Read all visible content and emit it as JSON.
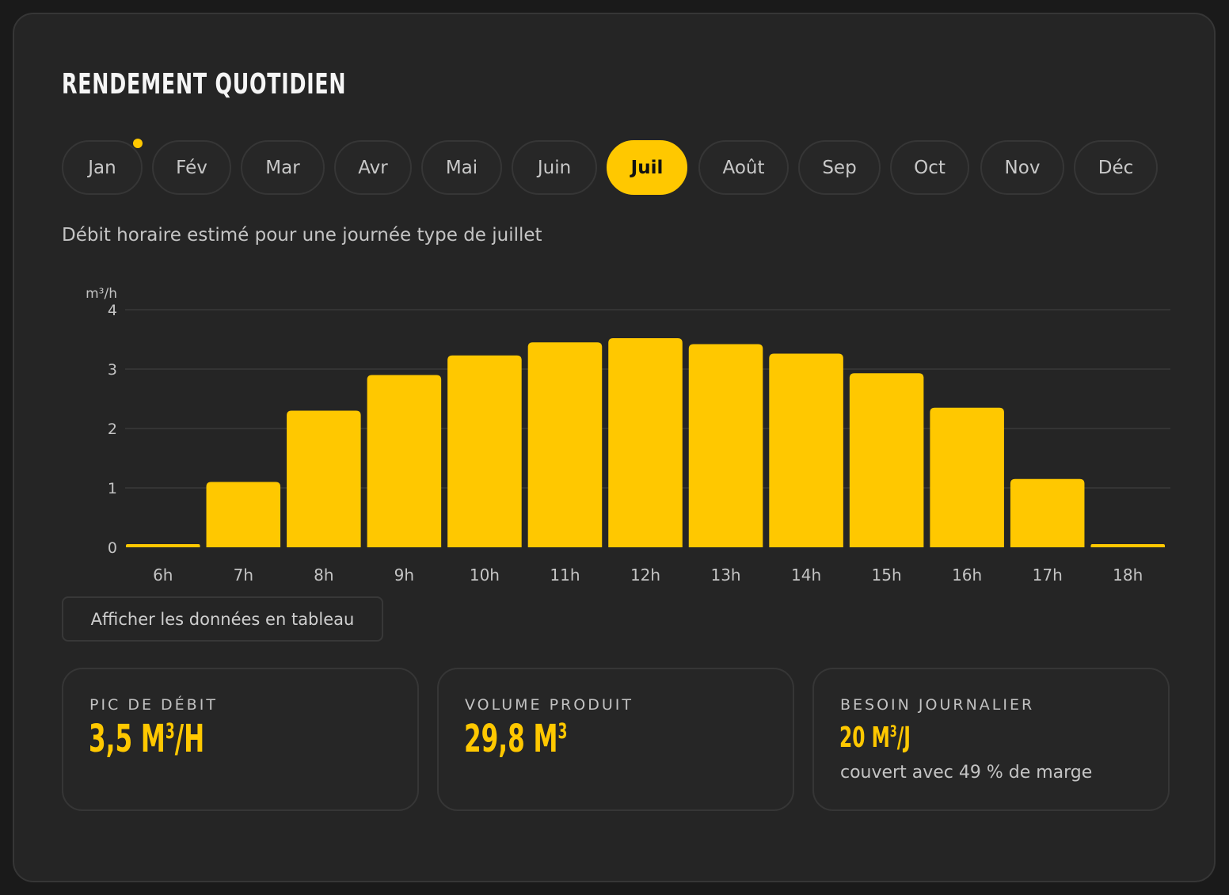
{
  "title": "RENDEMENT QUOTIDIEN",
  "months": [
    {
      "label": "Jan",
      "marker": true
    },
    {
      "label": "Fév"
    },
    {
      "label": "Mar"
    },
    {
      "label": "Avr"
    },
    {
      "label": "Mai"
    },
    {
      "label": "Juin"
    },
    {
      "label": "Juil",
      "active": true
    },
    {
      "label": "Août"
    },
    {
      "label": "Sep"
    },
    {
      "label": "Oct"
    },
    {
      "label": "Nov"
    },
    {
      "label": "Déc"
    }
  ],
  "subtitle": "Débit horaire estimé pour une journée type de juillet",
  "colors": {
    "accent": "#ffc800",
    "background": "#252525",
    "grid": "#3a3a3a"
  },
  "chart_data": {
    "type": "bar",
    "ylabel": "m³/h",
    "categories": [
      "6h",
      "7h",
      "8h",
      "9h",
      "10h",
      "11h",
      "12h",
      "13h",
      "14h",
      "15h",
      "16h",
      "17h",
      "18h"
    ],
    "values": [
      0.05,
      1.1,
      2.3,
      2.9,
      3.23,
      3.45,
      3.52,
      3.42,
      3.26,
      2.93,
      2.35,
      1.15,
      0.05
    ],
    "yticks": [
      0,
      1,
      2,
      3,
      4
    ],
    "ylim": [
      0,
      4
    ],
    "grid": true
  },
  "table_button": "Afficher les données en tableau",
  "stats": [
    {
      "label": "PIC DE DÉBIT",
      "value": "3,5 M",
      "sup": "3",
      "suffix": "/H"
    },
    {
      "label": "VOLUME PRODUIT",
      "value": "29,8 M",
      "sup": "3",
      "suffix": ""
    },
    {
      "label": "BESOIN JOURNALIER",
      "value": "20 M",
      "sup": "3",
      "suffix": "/J",
      "note": "couvert avec 49 % de marge"
    }
  ]
}
